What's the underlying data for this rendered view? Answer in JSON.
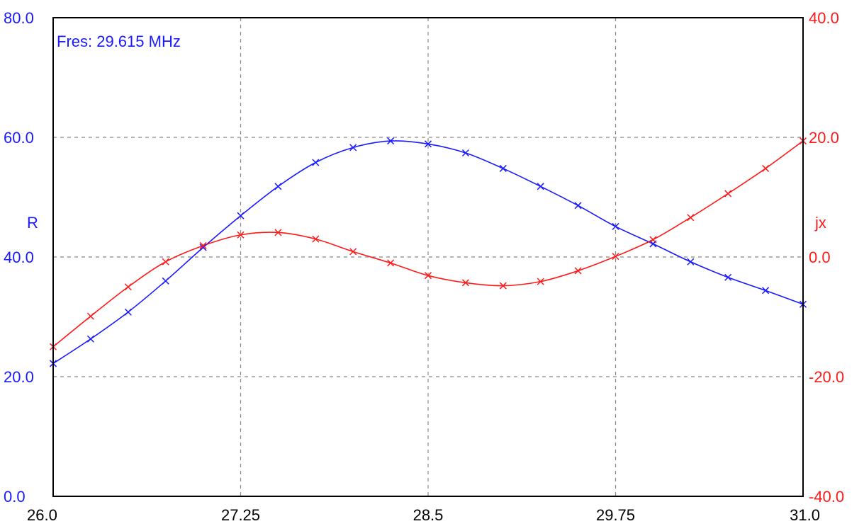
{
  "chart_data": {
    "type": "line",
    "title": "",
    "annotation": "Fres: 29.615 MHz",
    "xlabel": "",
    "x": [
      26.0,
      26.25,
      26.5,
      26.75,
      27.0,
      27.25,
      27.5,
      27.75,
      28.0,
      28.25,
      28.5,
      28.75,
      29.0,
      29.25,
      29.5,
      29.75,
      30.0,
      30.25,
      30.5,
      30.75,
      31.0
    ],
    "xlim": [
      26.0,
      31.0
    ],
    "x_tick_values": [
      26.0,
      27.25,
      28.5,
      29.75,
      31.0
    ],
    "x_tick_labels": [
      "26.0",
      "27.25",
      "28.5",
      "29.75",
      "31.0"
    ],
    "y_left": {
      "label": "R",
      "lim": [
        0,
        80
      ],
      "tick_values": [
        0,
        20,
        40,
        60,
        80
      ],
      "tick_labels": [
        "0.0",
        "20.0",
        "40.0",
        "60.0",
        "80.0"
      ],
      "color": "#1a1aff"
    },
    "y_right": {
      "label": "jx",
      "lim": [
        -40,
        40
      ],
      "tick_values": [
        -40,
        -20,
        0,
        20,
        40
      ],
      "tick_labels": [
        "-40.0",
        "-20.0",
        "0.0",
        "20.0",
        "40.0"
      ],
      "color": "#ff1a1a"
    },
    "grid": true,
    "series": [
      {
        "axis": "left",
        "color": "#1a1aff",
        "values": [
          22.2,
          26.3,
          30.8,
          36.0,
          41.6,
          46.9,
          51.8,
          55.8,
          58.3,
          59.4,
          58.9,
          57.4,
          54.8,
          51.8,
          48.6,
          45.1,
          42.2,
          39.2,
          36.6,
          34.4,
          32.1
        ]
      },
      {
        "axis": "right",
        "color": "#ff1a1a",
        "values": [
          -15.0,
          -9.9,
          -5.0,
          -0.8,
          1.9,
          3.7,
          4.1,
          3.0,
          0.9,
          -1.0,
          -3.1,
          -4.3,
          -4.8,
          -4.1,
          -2.3,
          0.1,
          2.9,
          6.6,
          10.6,
          14.8,
          19.4
        ]
      }
    ]
  }
}
